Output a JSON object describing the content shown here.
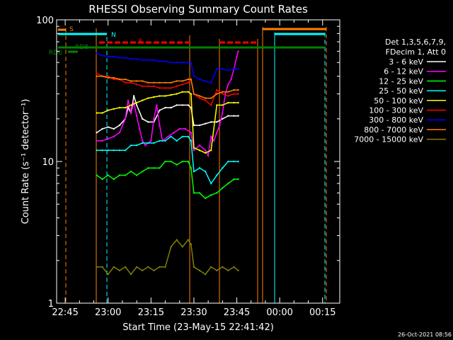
{
  "chart_data": {
    "type": "line",
    "title": "RHESSI Observing Summary Count Rates",
    "xlabel": "Start Time (23-May-15 22:41:42)",
    "ylabel": "Count Rate (s⁻¹ detector⁻¹)",
    "x_range_minutes": [
      -3,
      96
    ],
    "x_ticks": [
      {
        "label": "22:45",
        "minutes": 0
      },
      {
        "label": "23:00",
        "minutes": 15
      },
      {
        "label": "23:15",
        "minutes": 30
      },
      {
        "label": "23:30",
        "minutes": 45
      },
      {
        "label": "23:45",
        "minutes": 60
      },
      {
        "label": "00:00",
        "minutes": 75
      },
      {
        "label": "00:15",
        "minutes": 90
      }
    ],
    "ylim": [
      1,
      100
    ],
    "yscale": "log",
    "y_ticks": [
      {
        "label": "1",
        "value": 1
      },
      {
        "label": "10",
        "value": 10
      },
      {
        "label": "100",
        "value": 100
      }
    ],
    "legend_header": [
      "Det 1,3,5,6,7,9,",
      "FDecim 1, Att 0"
    ],
    "series": [
      {
        "name": "3 - 6 keV",
        "color": "#ffffff",
        "points": [
          [
            11,
            16
          ],
          [
            13,
            17
          ],
          [
            15,
            17.5
          ],
          [
            17,
            17
          ],
          [
            19,
            18
          ],
          [
            21,
            20
          ],
          [
            22,
            24
          ],
          [
            23,
            22
          ],
          [
            24,
            29
          ],
          [
            25,
            25
          ],
          [
            27,
            20
          ],
          [
            29,
            19
          ],
          [
            31,
            19
          ],
          [
            33,
            23
          ],
          [
            35,
            24
          ],
          [
            37,
            24
          ],
          [
            39,
            25
          ],
          [
            41,
            25
          ],
          [
            43,
            25
          ],
          [
            44,
            24
          ],
          [
            45,
            18
          ],
          [
            47,
            18
          ],
          [
            49,
            18.5
          ],
          [
            51,
            19
          ],
          [
            53,
            19
          ],
          [
            55,
            20
          ],
          [
            57,
            21
          ],
          [
            59,
            21
          ],
          [
            60.5,
            21
          ]
        ]
      },
      {
        "name": "6 - 12 keV",
        "color": "#ff00ff",
        "points": [
          [
            11,
            14
          ],
          [
            13,
            14
          ],
          [
            15,
            14.5
          ],
          [
            17,
            15
          ],
          [
            19,
            16
          ],
          [
            21,
            20
          ],
          [
            22,
            27
          ],
          [
            23,
            22
          ],
          [
            24,
            26
          ],
          [
            25,
            21
          ],
          [
            26,
            17
          ],
          [
            27,
            14
          ],
          [
            28,
            13
          ],
          [
            30,
            14
          ],
          [
            31,
            20
          ],
          [
            32,
            25
          ],
          [
            33,
            18
          ],
          [
            34,
            14
          ],
          [
            36,
            15
          ],
          [
            38,
            16
          ],
          [
            40,
            17
          ],
          [
            42,
            17
          ],
          [
            44,
            16
          ],
          [
            45,
            12
          ],
          [
            47,
            13
          ],
          [
            49,
            12
          ],
          [
            50,
            11
          ],
          [
            51,
            15
          ],
          [
            52,
            14
          ],
          [
            53,
            16
          ],
          [
            54,
            18
          ],
          [
            55,
            22
          ],
          [
            56,
            30
          ],
          [
            57,
            35
          ],
          [
            58,
            38
          ],
          [
            59,
            45
          ],
          [
            60,
            55
          ],
          [
            60.5,
            60
          ]
        ]
      },
      {
        "name": "12 - 25 keV",
        "color": "#00ff00",
        "points": [
          [
            11,
            8
          ],
          [
            13,
            7.5
          ],
          [
            15,
            8
          ],
          [
            17,
            7.5
          ],
          [
            19,
            8
          ],
          [
            21,
            8
          ],
          [
            23,
            8.5
          ],
          [
            25,
            8
          ],
          [
            27,
            8.5
          ],
          [
            29,
            9
          ],
          [
            31,
            9
          ],
          [
            33,
            9
          ],
          [
            35,
            10
          ],
          [
            37,
            10
          ],
          [
            39,
            9.5
          ],
          [
            41,
            10
          ],
          [
            43,
            10
          ],
          [
            44,
            9
          ],
          [
            45,
            6
          ],
          [
            47,
            6
          ],
          [
            49,
            5.5
          ],
          [
            51,
            5.8
          ],
          [
            53,
            6
          ],
          [
            55,
            6.5
          ],
          [
            57,
            7
          ],
          [
            59,
            7.5
          ],
          [
            60.5,
            7.5
          ]
        ]
      },
      {
        "name": "25 - 50 keV",
        "color": "#00ffff",
        "points": [
          [
            11,
            12
          ],
          [
            13,
            12
          ],
          [
            15,
            12
          ],
          [
            17,
            12
          ],
          [
            19,
            12
          ],
          [
            21,
            12
          ],
          [
            23,
            13
          ],
          [
            25,
            13
          ],
          [
            27,
            13.5
          ],
          [
            29,
            13.5
          ],
          [
            31,
            13.5
          ],
          [
            33,
            14
          ],
          [
            35,
            14
          ],
          [
            37,
            15
          ],
          [
            39,
            14
          ],
          [
            41,
            15
          ],
          [
            43,
            15
          ],
          [
            44,
            14
          ],
          [
            45,
            8.5
          ],
          [
            47,
            9
          ],
          [
            49,
            8.5
          ],
          [
            51,
            7
          ],
          [
            53,
            8
          ],
          [
            55,
            9
          ],
          [
            57,
            10
          ],
          [
            59,
            10
          ],
          [
            60.5,
            10
          ]
        ]
      },
      {
        "name": "50 - 100 keV",
        "color": "#ffff00",
        "points": [
          [
            11,
            22
          ],
          [
            13,
            22
          ],
          [
            15,
            23
          ],
          [
            17,
            23.5
          ],
          [
            19,
            24
          ],
          [
            21,
            24
          ],
          [
            23,
            25
          ],
          [
            25,
            26
          ],
          [
            27,
            27
          ],
          [
            29,
            28
          ],
          [
            31,
            28.5
          ],
          [
            33,
            29
          ],
          [
            35,
            29
          ],
          [
            37,
            29.5
          ],
          [
            39,
            30
          ],
          [
            41,
            31
          ],
          [
            43,
            31
          ],
          [
            44,
            30
          ],
          [
            45,
            12.5
          ],
          [
            47,
            12
          ],
          [
            49,
            11.5
          ],
          [
            51,
            12
          ],
          [
            53,
            25
          ],
          [
            55,
            25
          ],
          [
            57,
            26
          ],
          [
            59,
            26
          ],
          [
            60.5,
            26
          ]
        ]
      },
      {
        "name": "100 - 300 keV",
        "color": "#ff0000",
        "points": [
          [
            11,
            42
          ],
          [
            13,
            40
          ],
          [
            15,
            40
          ],
          [
            17,
            38
          ],
          [
            19,
            38
          ],
          [
            21,
            36
          ],
          [
            23,
            36
          ],
          [
            25,
            35
          ],
          [
            27,
            34
          ],
          [
            29,
            34
          ],
          [
            31,
            34
          ],
          [
            33,
            33
          ],
          [
            35,
            33
          ],
          [
            37,
            33
          ],
          [
            39,
            34
          ],
          [
            41,
            35
          ],
          [
            43,
            36
          ],
          [
            44,
            38
          ],
          [
            45,
            30
          ],
          [
            47,
            28
          ],
          [
            49,
            27
          ],
          [
            51,
            25
          ],
          [
            53,
            32
          ],
          [
            55,
            30
          ],
          [
            57,
            29
          ],
          [
            59,
            30
          ],
          [
            60.5,
            30
          ]
        ]
      },
      {
        "name": "300 - 800 keV",
        "color": "#0000ff",
        "points": [
          [
            11,
            58
          ],
          [
            13,
            56
          ],
          [
            15,
            55
          ],
          [
            17,
            55
          ],
          [
            19,
            54
          ],
          [
            21,
            54
          ],
          [
            23,
            53
          ],
          [
            25,
            53
          ],
          [
            27,
            52
          ],
          [
            29,
            52
          ],
          [
            31,
            52
          ],
          [
            33,
            51
          ],
          [
            35,
            51
          ],
          [
            37,
            50
          ],
          [
            39,
            50
          ],
          [
            41,
            50
          ],
          [
            43,
            50
          ],
          [
            44,
            50
          ],
          [
            45,
            40
          ],
          [
            47,
            38
          ],
          [
            49,
            37
          ],
          [
            51,
            36
          ],
          [
            53,
            45
          ],
          [
            55,
            45
          ],
          [
            57,
            44
          ],
          [
            59,
            45
          ],
          [
            60.5,
            45
          ]
        ]
      },
      {
        "name": "800 - 7000 keV",
        "color": "#ff8000",
        "points": [
          [
            11,
            40
          ],
          [
            13,
            40
          ],
          [
            15,
            39
          ],
          [
            17,
            39
          ],
          [
            19,
            38
          ],
          [
            21,
            38
          ],
          [
            23,
            37
          ],
          [
            25,
            37
          ],
          [
            27,
            37
          ],
          [
            29,
            36
          ],
          [
            31,
            36
          ],
          [
            33,
            36
          ],
          [
            35,
            36
          ],
          [
            37,
            36
          ],
          [
            39,
            37
          ],
          [
            41,
            37
          ],
          [
            43,
            38
          ],
          [
            44,
            38
          ],
          [
            45,
            30
          ],
          [
            47,
            29
          ],
          [
            49,
            28
          ],
          [
            51,
            28
          ],
          [
            53,
            30
          ],
          [
            55,
            31
          ],
          [
            57,
            31
          ],
          [
            59,
            32
          ],
          [
            60.5,
            32
          ]
        ]
      },
      {
        "name": "7000 - 15000 keV",
        "color": "#808000",
        "points": [
          [
            11,
            1.8
          ],
          [
            13,
            1.8
          ],
          [
            15,
            1.6
          ],
          [
            17,
            1.8
          ],
          [
            19,
            1.7
          ],
          [
            21,
            1.8
          ],
          [
            23,
            1.6
          ],
          [
            25,
            1.8
          ],
          [
            27,
            1.7
          ],
          [
            29,
            1.8
          ],
          [
            31,
            1.7
          ],
          [
            33,
            1.8
          ],
          [
            35,
            1.8
          ],
          [
            37,
            2.5
          ],
          [
            39,
            2.8
          ],
          [
            41,
            2.5
          ],
          [
            43,
            2.8
          ],
          [
            44,
            2.6
          ],
          [
            45,
            1.8
          ],
          [
            47,
            1.7
          ],
          [
            49,
            1.6
          ],
          [
            51,
            1.8
          ],
          [
            53,
            1.7
          ],
          [
            55,
            1.8
          ],
          [
            57,
            1.7
          ],
          [
            59,
            1.8
          ],
          [
            60.5,
            1.7
          ]
        ]
      }
    ],
    "flags": [
      {
        "label": "S",
        "color": "#ff8000"
      },
      {
        "label": "N",
        "color": "#00ffff"
      },
      {
        "label": "F",
        "color": "#ff0000"
      },
      {
        "label": "RD8",
        "color": "#008000"
      },
      {
        "label": "RD6",
        "color": "#008000"
      }
    ],
    "timestamp": "26-Oct-2021 08:56"
  }
}
